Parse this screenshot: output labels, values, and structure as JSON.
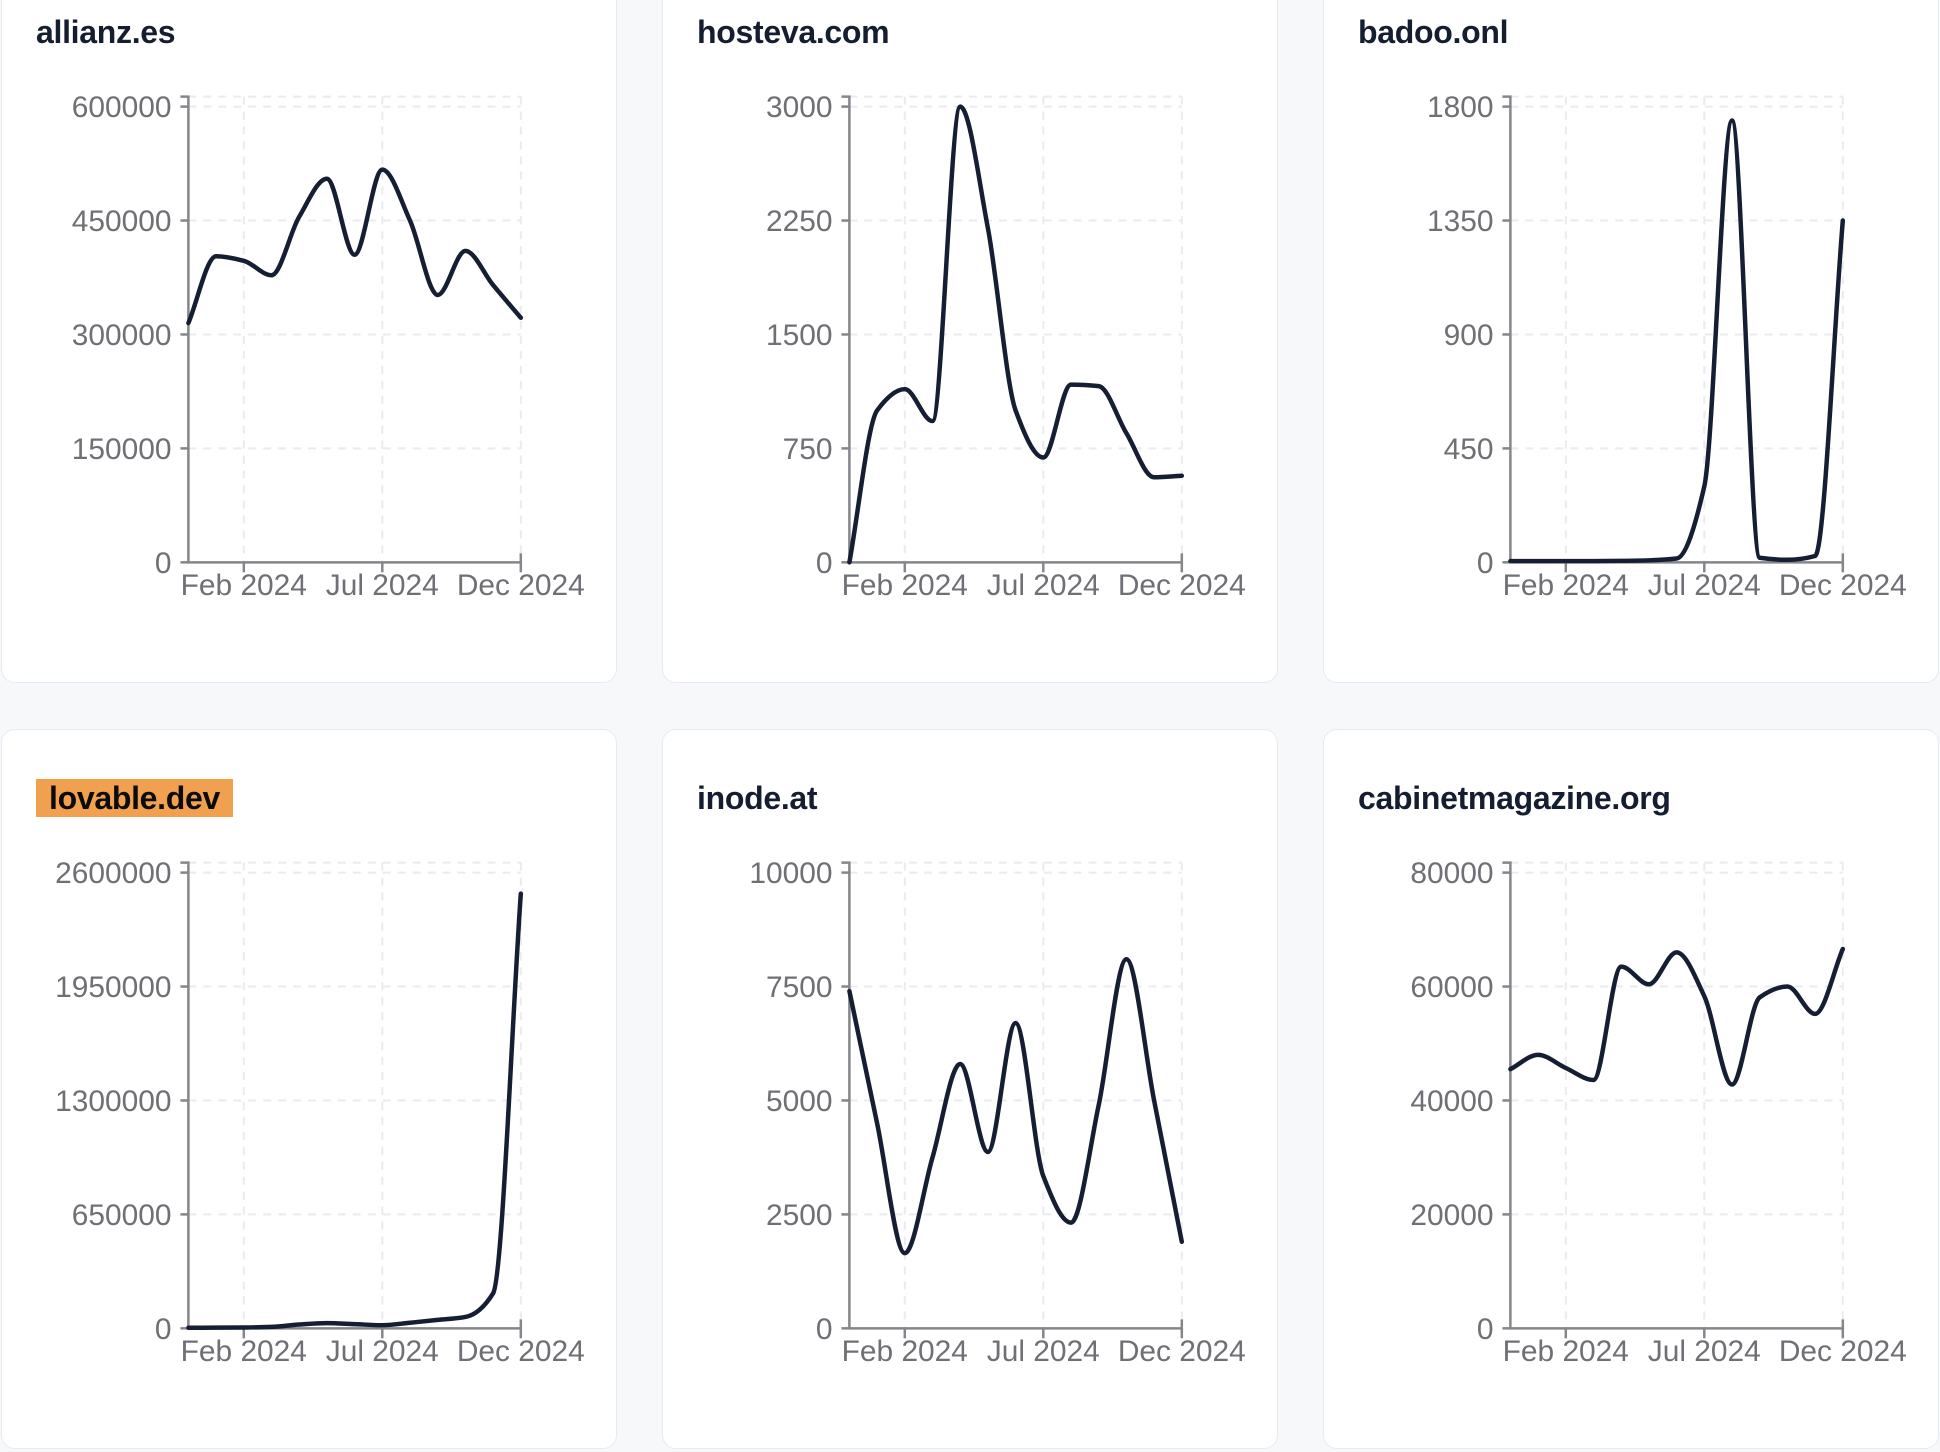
{
  "page": {
    "background": "#f7f8fa"
  },
  "theme": {
    "card_background": "#ffffff",
    "card_border": "#e6eaf2",
    "title_color": "#151d31",
    "line_color": "#161e33",
    "axis_color": "#85868a",
    "tick_label_color": "#6f7075",
    "grid_color": "#e9ebee",
    "highlight_background": "#f0a04e",
    "highlight_text_color": "#0b0b0b"
  },
  "chart_data": [
    {
      "type": "line",
      "title": "allianz.es",
      "highlighted": false,
      "x": [
        "Dec 2023",
        "Jan 2024",
        "Feb 2024",
        "Mar 2024",
        "Apr 2024",
        "May 2024",
        "Jun 2024",
        "Jul 2024",
        "Aug 2024",
        "Sep 2024",
        "Oct 2024",
        "Nov 2024",
        "Dec 2024"
      ],
      "values": [
        315000,
        403000,
        397000,
        378000,
        455000,
        505000,
        405000,
        517000,
        450000,
        352000,
        410000,
        365000,
        322000
      ],
      "ylim": [
        0,
        600000
      ],
      "y_ticks": [
        0,
        150000,
        300000,
        450000,
        600000
      ],
      "x_ticks": [
        {
          "label": "Feb 2024",
          "index": 2
        },
        {
          "label": "Jul 2024",
          "index": 7
        },
        {
          "label": "Dec 2024",
          "index": 12
        }
      ],
      "grid": true
    },
    {
      "type": "line",
      "title": "hosteva.com",
      "highlighted": false,
      "x": [
        "Dec 2023",
        "Jan 2024",
        "Feb 2024",
        "Mar 2024",
        "Apr 2024",
        "May 2024",
        "Jun 2024",
        "Jul 2024",
        "Aug 2024",
        "Sep 2024",
        "Oct 2024",
        "Nov 2024",
        "Dec 2024"
      ],
      "values": [
        0,
        1000,
        1140,
        930,
        3000,
        2200,
        1000,
        690,
        1170,
        1160,
        850,
        560,
        570
      ],
      "ylim": [
        0,
        3000
      ],
      "y_ticks": [
        0,
        750,
        1500,
        2250,
        3000
      ],
      "x_ticks": [
        {
          "label": "Feb 2024",
          "index": 2
        },
        {
          "label": "Jul 2024",
          "index": 7
        },
        {
          "label": "Dec 2024",
          "index": 12
        }
      ],
      "grid": true
    },
    {
      "type": "line",
      "title": "badoo.onl",
      "highlighted": false,
      "x": [
        "Dec 2023",
        "Jan 2024",
        "Feb 2024",
        "Mar 2024",
        "Apr 2024",
        "May 2024",
        "Jun 2024",
        "Jul 2024",
        "Aug 2024",
        "Sep 2024",
        "Oct 2024",
        "Nov 2024",
        "Dec 2024"
      ],
      "values": [
        5,
        5,
        5,
        5,
        6,
        8,
        15,
        300,
        1745,
        18,
        10,
        25,
        1350
      ],
      "ylim": [
        0,
        1800
      ],
      "y_ticks": [
        0,
        450,
        900,
        1350,
        1800
      ],
      "x_ticks": [
        {
          "label": "Feb 2024",
          "index": 2
        },
        {
          "label": "Jul 2024",
          "index": 7
        },
        {
          "label": "Dec 2024",
          "index": 12
        }
      ],
      "grid": true
    },
    {
      "type": "line",
      "title": "lovable.dev",
      "highlighted": true,
      "x": [
        "Dec 2023",
        "Jan 2024",
        "Feb 2024",
        "Mar 2024",
        "Apr 2024",
        "May 2024",
        "Jun 2024",
        "Jul 2024",
        "Aug 2024",
        "Sep 2024",
        "Oct 2024",
        "Nov 2024",
        "Dec 2024"
      ],
      "values": [
        3000,
        4000,
        5000,
        8000,
        22000,
        30000,
        24000,
        18000,
        32000,
        48000,
        65000,
        200000,
        2480000
      ],
      "ylim": [
        0,
        2600000
      ],
      "y_ticks": [
        0,
        650000,
        1300000,
        1950000,
        2600000
      ],
      "x_ticks": [
        {
          "label": "Feb 2024",
          "index": 2
        },
        {
          "label": "Jul 2024",
          "index": 7
        },
        {
          "label": "Dec 2024",
          "index": 12
        }
      ],
      "grid": true
    },
    {
      "type": "line",
      "title": "inode.at",
      "highlighted": false,
      "x": [
        "Dec 2023",
        "Jan 2024",
        "Feb 2024",
        "Mar 2024",
        "Apr 2024",
        "May 2024",
        "Jun 2024",
        "Jul 2024",
        "Aug 2024",
        "Sep 2024",
        "Oct 2024",
        "Nov 2024",
        "Dec 2024"
      ],
      "values": [
        7400,
        4500,
        1650,
        3750,
        5800,
        3870,
        6700,
        3340,
        2320,
        4900,
        8100,
        5000,
        1900
      ],
      "ylim": [
        0,
        10000
      ],
      "y_ticks": [
        0,
        2500,
        5000,
        7500,
        10000
      ],
      "x_ticks": [
        {
          "label": "Feb 2024",
          "index": 2
        },
        {
          "label": "Jul 2024",
          "index": 7
        },
        {
          "label": "Dec 2024",
          "index": 12
        }
      ],
      "grid": true
    },
    {
      "type": "line",
      "title": "cabinetmagazine.org",
      "highlighted": false,
      "x": [
        "Dec 2023",
        "Jan 2024",
        "Feb 2024",
        "Mar 2024",
        "Apr 2024",
        "May 2024",
        "Jun 2024",
        "Jul 2024",
        "Aug 2024",
        "Sep 2024",
        "Oct 2024",
        "Nov 2024",
        "Dec 2024"
      ],
      "values": [
        45500,
        48000,
        45700,
        43600,
        63500,
        60400,
        66000,
        58300,
        42800,
        58100,
        60000,
        55200,
        66600
      ],
      "ylim": [
        0,
        80000
      ],
      "y_ticks": [
        0,
        20000,
        40000,
        60000,
        80000
      ],
      "x_ticks": [
        {
          "label": "Feb 2024",
          "index": 2
        },
        {
          "label": "Jul 2024",
          "index": 7
        },
        {
          "label": "Dec 2024",
          "index": 12
        }
      ],
      "grid": true
    }
  ]
}
